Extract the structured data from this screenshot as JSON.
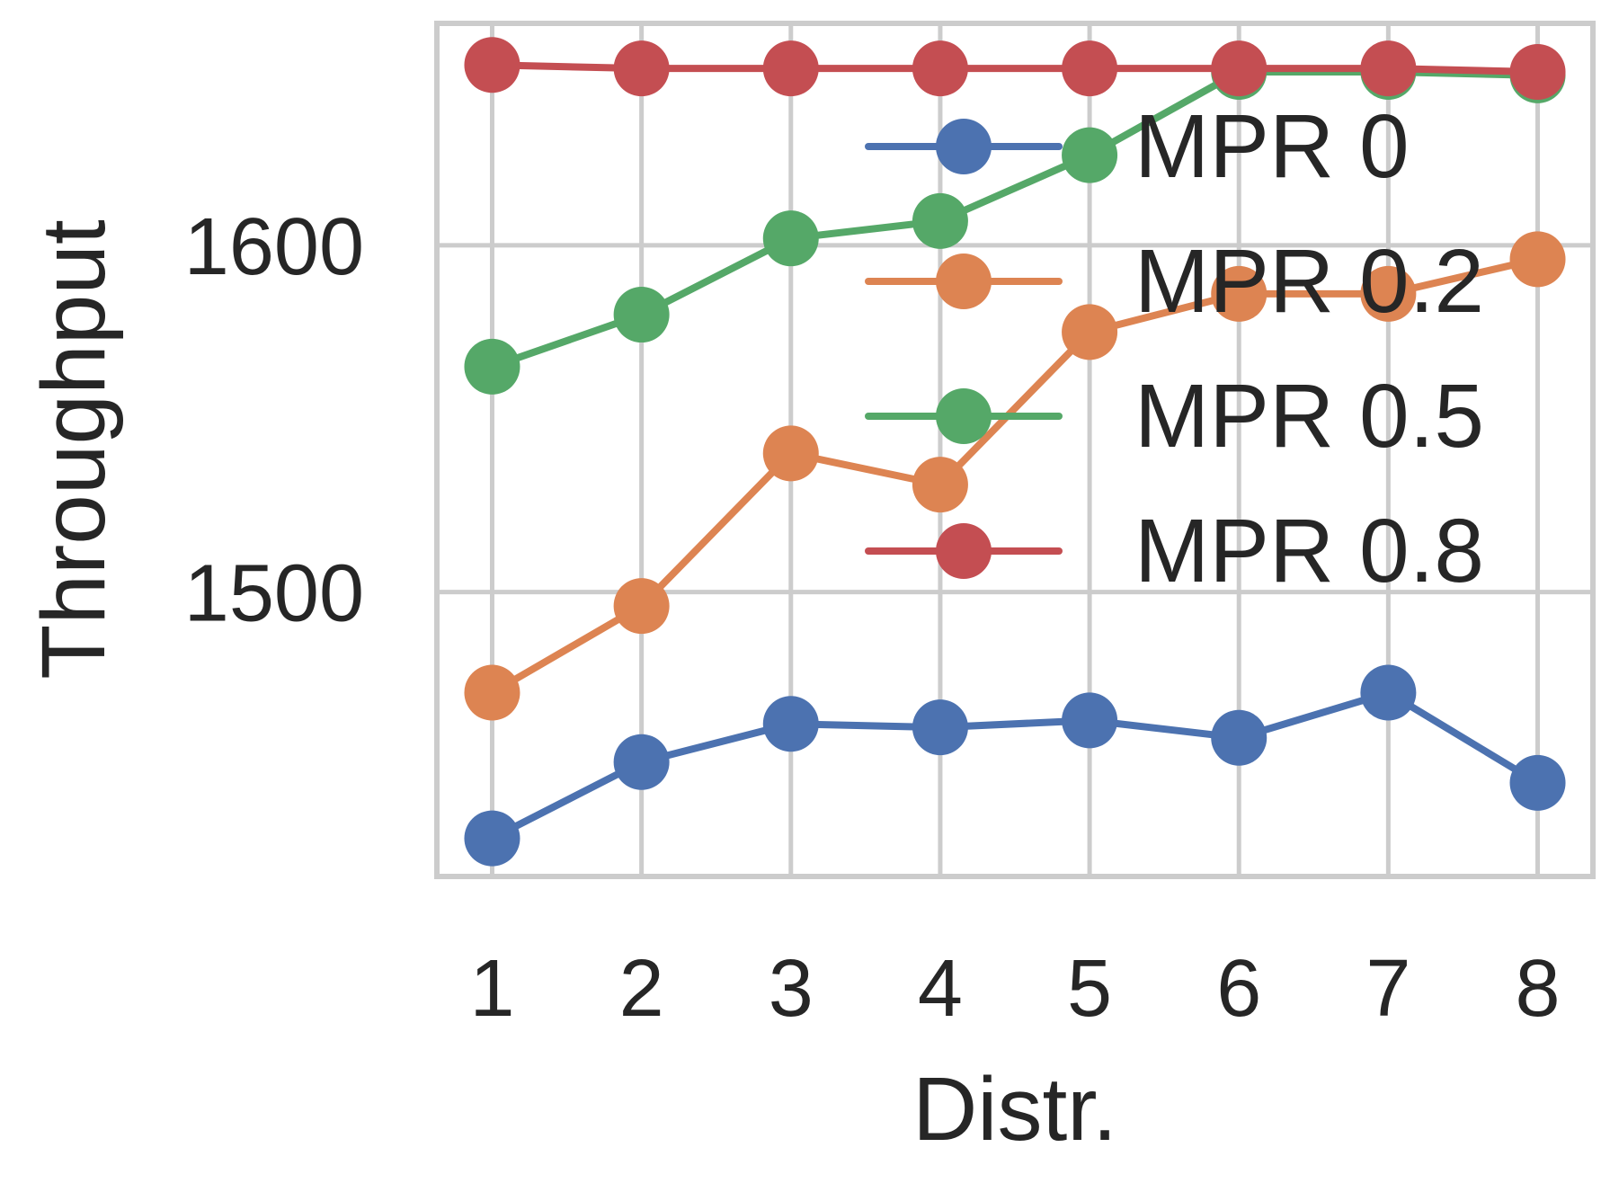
{
  "chart_data": {
    "type": "line",
    "xlabel": "Distr.",
    "ylabel": "Throughput",
    "x": [
      1,
      2,
      3,
      4,
      5,
      6,
      7,
      8
    ],
    "xticks": [
      "1",
      "2",
      "3",
      "4",
      "5",
      "6",
      "7",
      "8"
    ],
    "yticks": [
      1500,
      1600
    ],
    "ytick_labels": [
      "1500",
      "1600"
    ],
    "ylim": [
      1418,
      1664
    ],
    "xlim": [
      0.63,
      8.37
    ],
    "grid": true,
    "legend_position": "upper-right",
    "series": [
      {
        "name": "MPR 0",
        "color": "#4c72b0",
        "values": [
          1429,
          1451,
          1462,
          1461,
          1463,
          1458,
          1471,
          1445
        ]
      },
      {
        "name": "MPR 0.2",
        "color": "#dd8452",
        "values": [
          1471,
          1496,
          1540,
          1531,
          1575,
          1586,
          1586,
          1596
        ]
      },
      {
        "name": "MPR 0.5",
        "color": "#55a868",
        "values": [
          1565,
          1580,
          1602,
          1607,
          1626,
          1650,
          1650,
          1649
        ]
      },
      {
        "name": "MPR 0.8",
        "color": "#c44e52",
        "values": [
          1652,
          1651,
          1651,
          1651,
          1651,
          1651,
          1651,
          1650
        ]
      }
    ]
  }
}
